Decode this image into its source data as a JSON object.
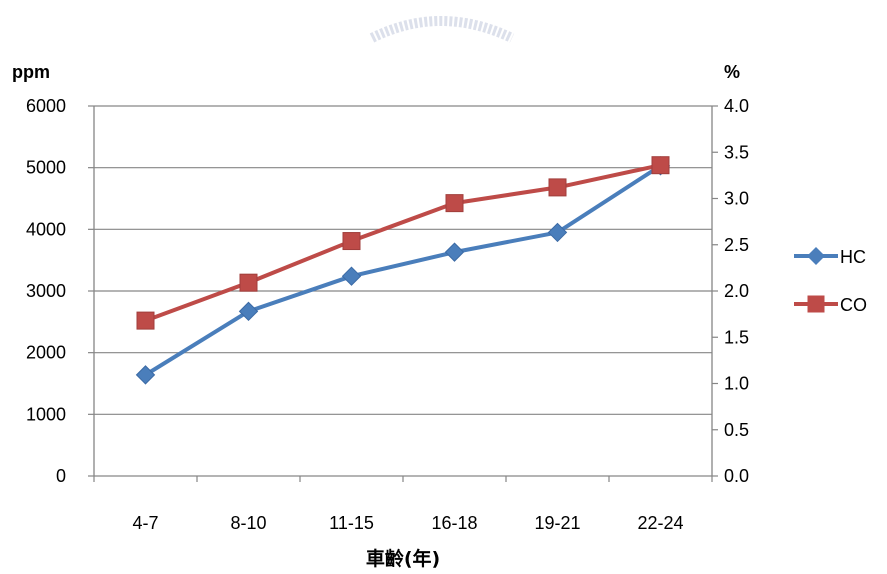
{
  "chart_data": {
    "type": "line",
    "categories": [
      "4-7",
      "8-10",
      "11-15",
      "16-18",
      "19-21",
      "22-24"
    ],
    "xlabel": "車齡(年)",
    "y_left": {
      "unit": "ppm",
      "range": [
        0,
        6000
      ],
      "ticks": [
        "0",
        "1000",
        "2000",
        "3000",
        "4000",
        "5000",
        "6000"
      ]
    },
    "y_right": {
      "unit": "%",
      "range": [
        0,
        4.0
      ],
      "ticks": [
        "0.0",
        "0.5",
        "1.0",
        "1.5",
        "2.0",
        "2.5",
        "3.0",
        "3.5",
        "4.0"
      ]
    },
    "grid": "horizontal",
    "legend_position": "right",
    "series": [
      {
        "name": "HC",
        "axis": "left",
        "color": "#4a7ebb",
        "marker": "diamond",
        "values": [
          1640,
          2670,
          3240,
          3630,
          3950,
          5030
        ]
      },
      {
        "name": "CO",
        "axis": "right",
        "color": "#be4b48",
        "marker": "square",
        "values": [
          1.68,
          2.09,
          2.54,
          2.95,
          3.12,
          3.36
        ]
      }
    ]
  }
}
